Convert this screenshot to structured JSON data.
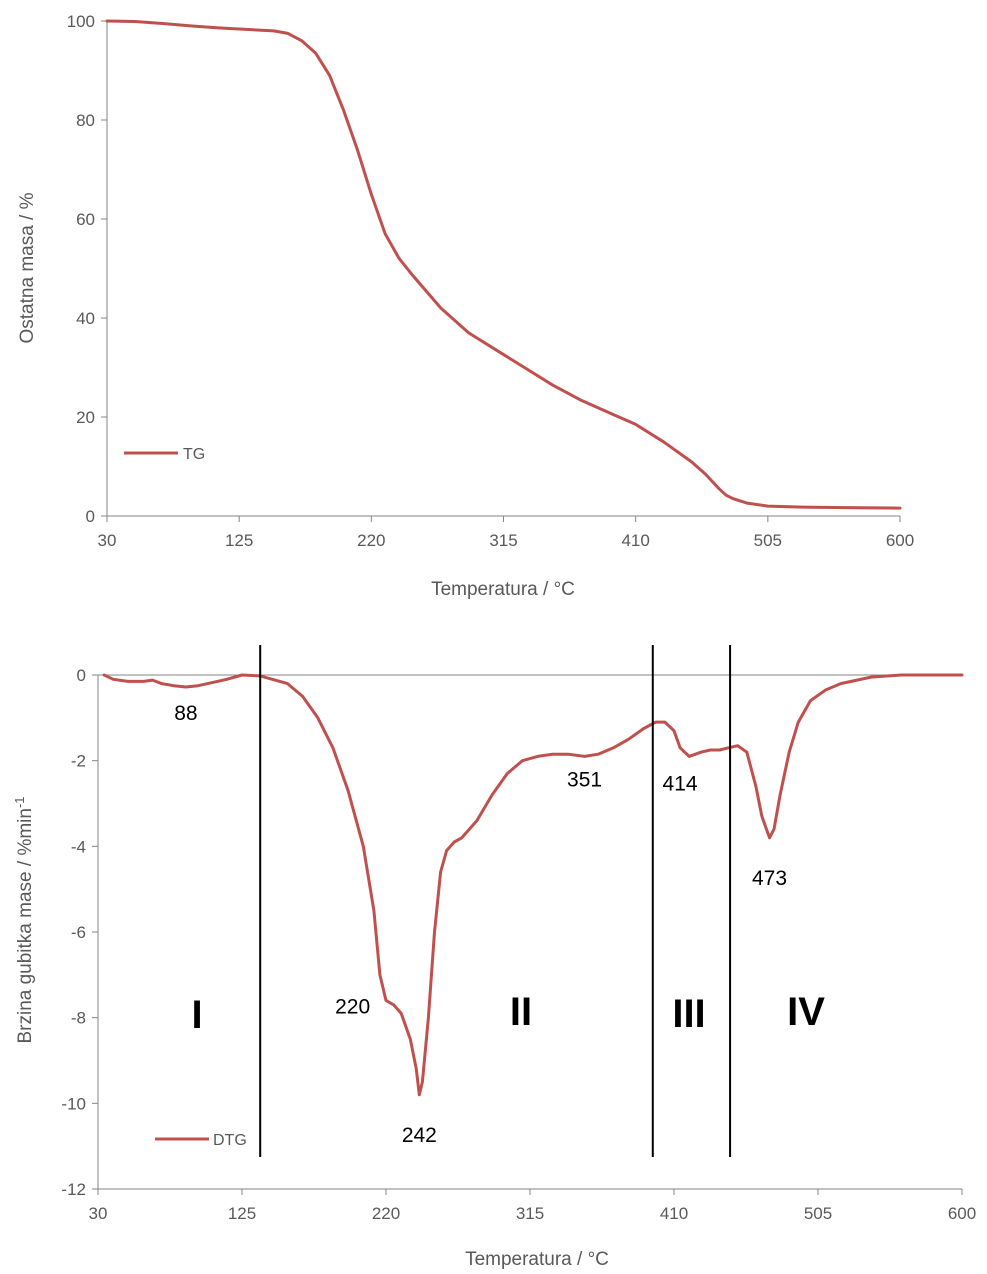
{
  "chart_data": [
    {
      "type": "line",
      "title": "",
      "xlabel": "Temperatura / °C",
      "ylabel": "Ostatna masa / %",
      "xlim": [
        30,
        600
      ],
      "ylim": [
        0,
        100
      ],
      "xticks": [
        "30",
        "125",
        "220",
        "315",
        "410",
        "505",
        "600"
      ],
      "yticks": [
        "0",
        "20",
        "40",
        "60",
        "80",
        "100"
      ],
      "grid": false,
      "legend": "bottom-left",
      "color": "#C0504D",
      "series": [
        {
          "name": "TG",
          "x": [
            30,
            50,
            70,
            90,
            110,
            130,
            150,
            160,
            170,
            180,
            190,
            200,
            210,
            220,
            230,
            240,
            250,
            270,
            290,
            310,
            330,
            350,
            370,
            390,
            410,
            430,
            450,
            460,
            470,
            475,
            480,
            490,
            505,
            530,
            560,
            600
          ],
          "y": [
            100,
            99.9,
            99.5,
            99,
            98.6,
            98.3,
            98,
            97.5,
            96,
            93.5,
            89,
            82,
            74,
            65,
            57,
            52,
            48.5,
            42,
            37,
            33.5,
            30,
            26.5,
            23.5,
            21,
            18.5,
            15,
            11,
            8.5,
            5.5,
            4.2,
            3.5,
            2.6,
            2.0,
            1.8,
            1.7,
            1.6
          ]
        }
      ]
    },
    {
      "type": "line",
      "title": "",
      "xlabel": "Temperatura / °C",
      "ylabel": "Brzina gubitka mase /  %min",
      "ylabel_sup": "-1",
      "xlim": [
        30,
        600
      ],
      "ylim": [
        -12,
        0
      ],
      "xticks": [
        "30",
        "125",
        "220",
        "315",
        "410",
        "505",
        "600"
      ],
      "yticks": [
        "-12",
        "-10",
        "-8",
        "-6",
        "-4",
        "-2",
        "0"
      ],
      "grid": false,
      "legend": "bottom-left",
      "color": "#C0504D",
      "series": [
        {
          "name": "DTG",
          "x": [
            34,
            40,
            50,
            60,
            66,
            72,
            80,
            88,
            96,
            105,
            115,
            125,
            137,
            145,
            155,
            165,
            175,
            185,
            195,
            205,
            212,
            216,
            220,
            225,
            230,
            236,
            240,
            242,
            244,
            248,
            252,
            256,
            260,
            265,
            270,
            280,
            290,
            300,
            310,
            320,
            330,
            340,
            351,
            360,
            370,
            380,
            390,
            398,
            404,
            410,
            414,
            420,
            428,
            434,
            440,
            446,
            452,
            458,
            464,
            468,
            473,
            476,
            480,
            486,
            492,
            500,
            510,
            520,
            540,
            560,
            580,
            600
          ],
          "y": [
            0,
            -0.1,
            -0.15,
            -0.15,
            -0.12,
            -0.2,
            -0.25,
            -0.28,
            -0.25,
            -0.18,
            -0.1,
            0,
            -0.02,
            -0.1,
            -0.2,
            -0.5,
            -1,
            -1.7,
            -2.7,
            -4,
            -5.5,
            -7,
            -7.6,
            -7.7,
            -7.9,
            -8.5,
            -9.2,
            -9.8,
            -9.5,
            -8,
            -6,
            -4.6,
            -4.1,
            -3.9,
            -3.8,
            -3.4,
            -2.8,
            -2.3,
            -2.0,
            -1.9,
            -1.85,
            -1.85,
            -1.9,
            -1.85,
            -1.7,
            -1.5,
            -1.25,
            -1.1,
            -1.1,
            -1.3,
            -1.7,
            -1.9,
            -1.8,
            -1.75,
            -1.75,
            -1.7,
            -1.65,
            -1.8,
            -2.6,
            -3.3,
            -3.8,
            -3.6,
            -2.8,
            -1.8,
            -1.1,
            -0.6,
            -0.35,
            -0.2,
            -0.05,
            0,
            0,
            0
          ]
        }
      ],
      "annotations": [
        {
          "text": "88",
          "x": 88,
          "y": -1.05
        },
        {
          "text": "220",
          "x": 198,
          "y": -7.9
        },
        {
          "text": "242",
          "x": 242,
          "y": -10.9
        },
        {
          "text": "351",
          "x": 351,
          "y": -2.6
        },
        {
          "text": "414",
          "x": 414,
          "y": -2.7
        },
        {
          "text": "473",
          "x": 473,
          "y": -4.9
        }
      ],
      "regions": [
        "I",
        "II",
        "III",
        "IV"
      ],
      "region_boundaries": [
        137,
        396,
        447
      ]
    }
  ]
}
